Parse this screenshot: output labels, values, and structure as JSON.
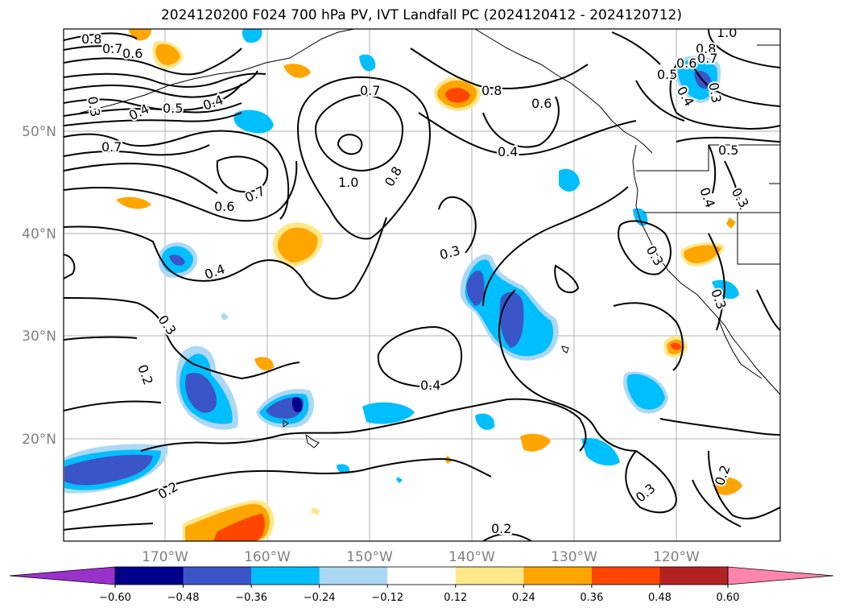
{
  "title": "2024120200 F024 700 hPa PV, IVT Landfall PC (2024120412 - 2024120712)",
  "map": {
    "lat_labels": [
      "50°N",
      "40°N",
      "30°N",
      "20°N"
    ],
    "lon_labels": [
      "170°W",
      "160°W",
      "150°W",
      "140°W",
      "130°W",
      "120°W"
    ],
    "gridlines": true
  },
  "pv_contour_labels": [
    "0.8",
    "0.7",
    "0.6",
    "0.3",
    "0.4",
    "0.5",
    "0.4",
    "0.7",
    "0.7",
    "0.8",
    "0.6",
    "0.4",
    "1.0",
    "0.8",
    "0.7",
    "0.6",
    "0.4",
    "0.3",
    "0.3",
    "0.2",
    "0.4",
    "0.2",
    "0.2",
    "0.3",
    "0.2",
    "0.5",
    "0.4",
    "0.3",
    "0.3",
    "0.3",
    "1.0",
    "0.8",
    "0.7",
    "0.6",
    "0.5",
    "0.4",
    "0.3"
  ],
  "colorbar": {
    "ticks": [
      "−0.60",
      "−0.48",
      "−0.36",
      "−0.24",
      "−0.12",
      "0.12",
      "0.24",
      "0.36",
      "0.48",
      "0.60"
    ],
    "colors": [
      "#9932cc",
      "#00008b",
      "#3a55c8",
      "#00bfff",
      "#add8f5",
      "#ffffff",
      "#ffe88a",
      "#ffa500",
      "#ff4500",
      "#b22222",
      "#ff85aa"
    ],
    "extend": "both"
  }
}
